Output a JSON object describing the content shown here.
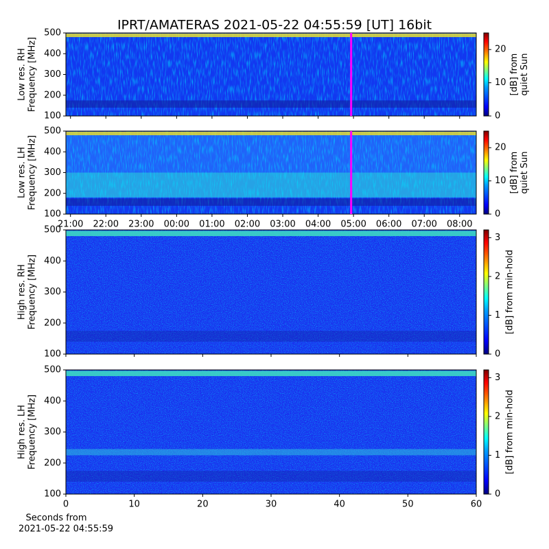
{
  "chart_data": [
    {
      "type": "spectrogram",
      "title": "IPRT/AMATERAS 2021-05-22 04:55:59 [UT]   16bit",
      "ylabel": [
        "Low res. RH",
        "Frequency [MHz]"
      ],
      "ylim": [
        100,
        500
      ],
      "yticks": [
        100,
        200,
        300,
        400,
        500
      ],
      "xlim": [
        -3.13,
        8.47
      ],
      "xticks": [
        -3,
        -2,
        -1,
        0,
        1,
        2,
        3,
        4,
        5,
        6,
        7,
        8
      ],
      "tick_labels": false,
      "marker_time": 4.933,
      "marker_color": "#ff00ff",
      "colorbar_label": [
        "[dB] from",
        "quiet Sun"
      ],
      "clim": [
        0,
        25
      ],
      "cticks": [
        0,
        10,
        20
      ],
      "colormap": "jet"
    },
    {
      "type": "spectrogram",
      "ylabel": [
        "Low res. LH",
        "Frequency [MHz]"
      ],
      "ylim": [
        100,
        500
      ],
      "yticks": [
        100,
        200,
        300,
        400,
        500
      ],
      "xlim": [
        -3.13,
        8.47
      ],
      "xticks": [
        {
          "value": -3,
          "label": "21:00"
        },
        {
          "value": -2,
          "label": "22:00"
        },
        {
          "value": -1,
          "label": "23:00"
        },
        {
          "value": 0,
          "label": "00:00"
        },
        {
          "value": 1,
          "label": "01:00"
        },
        {
          "value": 2,
          "label": "02:00"
        },
        {
          "value": 3,
          "label": "03:00"
        },
        {
          "value": 4,
          "label": "04:00"
        },
        {
          "value": 5,
          "label": "05:00"
        },
        {
          "value": 6,
          "label": "06:00"
        },
        {
          "value": 7,
          "label": "07:00"
        },
        {
          "value": 8,
          "label": "08:00"
        }
      ],
      "marker_time": 4.933,
      "marker_color": "#ff00ff",
      "colorbar_label": [
        "[dB] from",
        "quiet Sun"
      ],
      "clim": [
        0,
        25
      ],
      "cticks": [
        0,
        10,
        20
      ],
      "colormap": "jet"
    },
    {
      "type": "spectrogram",
      "ylabel": [
        "High res. RH",
        "Frequency [MHz]"
      ],
      "ylim": [
        100,
        500
      ],
      "yticks": [
        100,
        200,
        300,
        400,
        500
      ],
      "xlim": [
        0,
        60
      ],
      "xticks": [
        0,
        10,
        20,
        30,
        40,
        50,
        60
      ],
      "tick_labels": false,
      "colorbar_label": [
        "[dB] from min-hold"
      ],
      "clim": [
        0,
        3.2
      ],
      "cticks": [
        0,
        1,
        2,
        3
      ],
      "colormap": "jet"
    },
    {
      "type": "spectrogram",
      "ylabel": [
        "High res. LH",
        "Frequency [MHz]"
      ],
      "ylim": [
        100,
        500
      ],
      "yticks": [
        100,
        200,
        300,
        400,
        500
      ],
      "xlim": [
        0,
        60
      ],
      "xticks": [
        0,
        10,
        20,
        30,
        40,
        50,
        60
      ],
      "xlabel": [
        "Seconds from",
        "2021-05-22 04:55:59"
      ],
      "colorbar_label": [
        "[dB] from min-hold"
      ],
      "clim": [
        0,
        3.2
      ],
      "cticks": [
        0,
        1,
        2,
        3
      ],
      "colormap": "jet"
    }
  ]
}
